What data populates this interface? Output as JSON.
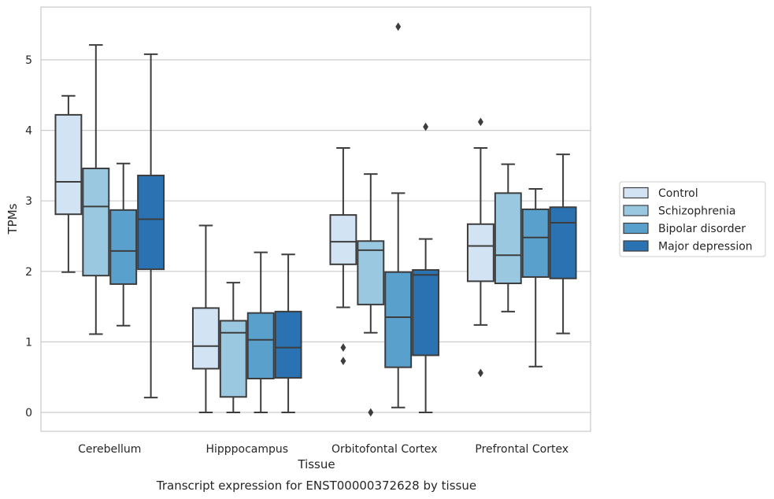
{
  "chart_data": {
    "type": "box",
    "title": "",
    "caption": "Transcript expression for ENST00000372628 by tissue",
    "xlabel": "Tissue",
    "ylabel": "TPMs",
    "ylim": [
      -0.25,
      5.75
    ],
    "yticks": [
      0,
      1,
      2,
      3,
      4,
      5
    ],
    "grid": "horizontal",
    "legend_position": "right",
    "categories": [
      "Cerebellum",
      "Hipppocampus",
      "Orbitofontal Cortex",
      "Prefrontal Cortex"
    ],
    "series": [
      {
        "name": "Control",
        "color": "#d2e3f3",
        "boxes": [
          {
            "whisker_low": 1.99,
            "q1": 2.81,
            "median": 3.27,
            "q3": 4.22,
            "whisker_high": 4.49,
            "outliers": []
          },
          {
            "whisker_low": 0.0,
            "q1": 0.62,
            "median": 0.94,
            "q3": 1.48,
            "whisker_high": 2.65,
            "outliers": []
          },
          {
            "whisker_low": 1.49,
            "q1": 2.1,
            "median": 2.42,
            "q3": 2.8,
            "whisker_high": 3.75,
            "outliers": [
              0.92,
              0.73
            ]
          },
          {
            "whisker_low": 1.24,
            "q1": 1.86,
            "median": 2.36,
            "q3": 2.67,
            "whisker_high": 3.75,
            "outliers": [
              4.12,
              0.56
            ]
          }
        ]
      },
      {
        "name": "Schizophrenia",
        "color": "#9ac8e0",
        "boxes": [
          {
            "whisker_low": 1.11,
            "q1": 1.94,
            "median": 2.92,
            "q3": 3.46,
            "whisker_high": 5.21,
            "outliers": []
          },
          {
            "whisker_low": 0.0,
            "q1": 0.22,
            "median": 1.13,
            "q3": 1.3,
            "whisker_high": 1.84,
            "outliers": []
          },
          {
            "whisker_low": 1.13,
            "q1": 1.53,
            "median": 2.3,
            "q3": 2.43,
            "whisker_high": 3.38,
            "outliers": [
              0.0
            ]
          },
          {
            "whisker_low": 1.43,
            "q1": 1.83,
            "median": 2.23,
            "q3": 3.11,
            "whisker_high": 3.52,
            "outliers": []
          }
        ]
      },
      {
        "name": "Bipolar disorder",
        "color": "#5aa0cd",
        "boxes": [
          {
            "whisker_low": 1.23,
            "q1": 1.82,
            "median": 2.29,
            "q3": 2.87,
            "whisker_high": 3.53,
            "outliers": []
          },
          {
            "whisker_low": 0.0,
            "q1": 0.48,
            "median": 1.03,
            "q3": 1.41,
            "whisker_high": 2.27,
            "outliers": []
          },
          {
            "whisker_low": 0.07,
            "q1": 0.64,
            "median": 1.35,
            "q3": 1.99,
            "whisker_high": 3.11,
            "outliers": [
              5.47
            ]
          },
          {
            "whisker_low": 0.65,
            "q1": 1.92,
            "median": 2.48,
            "q3": 2.88,
            "whisker_high": 3.17,
            "outliers": []
          }
        ]
      },
      {
        "name": "Major depression",
        "color": "#2a72b2",
        "boxes": [
          {
            "whisker_low": 0.21,
            "q1": 2.03,
            "median": 2.74,
            "q3": 3.36,
            "whisker_high": 5.08,
            "outliers": []
          },
          {
            "whisker_low": 0.0,
            "q1": 0.49,
            "median": 0.92,
            "q3": 1.43,
            "whisker_high": 2.24,
            "outliers": []
          },
          {
            "whisker_low": 0.0,
            "q1": 0.81,
            "median": 1.95,
            "q3": 2.02,
            "whisker_high": 2.46,
            "outliers": [
              4.05
            ]
          },
          {
            "whisker_low": 1.12,
            "q1": 1.9,
            "median": 2.69,
            "q3": 2.91,
            "whisker_high": 3.66,
            "outliers": []
          }
        ]
      }
    ]
  }
}
